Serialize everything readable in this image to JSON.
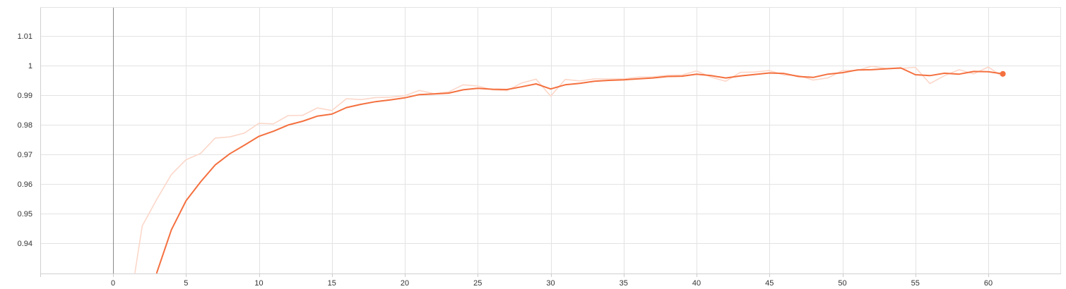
{
  "colors": {
    "smoothed": "#f4703f",
    "raw": "#fcd7c9",
    "grid": "#e3e3e3",
    "zero_line": "#8a8a8a",
    "tick_text": "#333333"
  },
  "chart_data": {
    "type": "line",
    "title": "",
    "xlabel": "",
    "ylabel": "",
    "xlim": [
      -5,
      66
    ],
    "ylim": [
      0.93,
      1.02
    ],
    "grid": true,
    "x_ticks": [
      0,
      5,
      10,
      15,
      20,
      25,
      30,
      35,
      40,
      45,
      50,
      55,
      60
    ],
    "y_ticks": [
      0.94,
      0.95,
      0.96,
      0.97,
      0.98,
      0.99,
      1,
      1.01
    ],
    "x_tick_labels": [
      "0",
      "5",
      "10",
      "15",
      "20",
      "25",
      "30",
      "35",
      "40",
      "45",
      "50",
      "55",
      "60"
    ],
    "y_tick_labels": [
      "0.94",
      "0.95",
      "0.96",
      "0.97",
      "0.98",
      "0.99",
      "1",
      "1.01"
    ],
    "series": [
      {
        "role": "raw",
        "color": "#fcd7c9",
        "x": [
          1.5,
          2,
          3,
          4,
          5,
          6,
          7,
          8,
          9,
          10,
          11,
          12,
          13,
          14,
          15,
          16,
          17,
          18,
          19,
          20,
          21,
          22,
          23,
          24,
          25,
          26,
          27,
          28,
          29,
          30,
          31,
          32,
          33,
          34,
          35,
          36,
          37,
          38,
          39,
          40,
          41,
          42,
          43,
          44,
          45,
          46,
          47,
          48,
          49,
          50,
          51,
          52,
          53,
          54,
          55,
          56,
          57,
          58,
          59,
          60,
          61
        ],
        "y": [
          0.93,
          0.9458,
          0.9548,
          0.9632,
          0.9682,
          0.9703,
          0.9755,
          0.9759,
          0.9772,
          0.9805,
          0.9803,
          0.9831,
          0.9832,
          0.9857,
          0.9848,
          0.9888,
          0.9885,
          0.9892,
          0.9893,
          0.9898,
          0.9916,
          0.9905,
          0.9911,
          0.9935,
          0.9931,
          0.9918,
          0.9915,
          0.9941,
          0.9954,
          0.9897,
          0.9953,
          0.9948,
          0.9955,
          0.9955,
          0.9955,
          0.9961,
          0.9962,
          0.9967,
          0.9968,
          0.9982,
          0.9961,
          0.9947,
          0.9977,
          0.9978,
          0.9983,
          0.9968,
          0.9966,
          0.9951,
          0.9958,
          0.9983,
          0.9983,
          0.9998,
          0.999,
          0.999,
          0.9994,
          0.9939,
          0.9966,
          0.9986,
          0.9972,
          0.9995,
          0.9962
        ]
      },
      {
        "role": "smoothed",
        "color": "#f4703f",
        "x": [
          3,
          4,
          5,
          6,
          7,
          8,
          9,
          10,
          11,
          12,
          13,
          14,
          15,
          16,
          17,
          18,
          19,
          20,
          21,
          22,
          23,
          24,
          25,
          26,
          27,
          28,
          29,
          30,
          31,
          32,
          33,
          34,
          35,
          36,
          37,
          38,
          39,
          40,
          41,
          42,
          43,
          44,
          45,
          46,
          47,
          48,
          49,
          50,
          51,
          52,
          53,
          54,
          55,
          56,
          57,
          58,
          59,
          60,
          61
        ],
        "y": [
          0.93,
          0.9445,
          0.9543,
          0.9607,
          0.9664,
          0.9702,
          0.9731,
          0.9761,
          0.9778,
          0.9799,
          0.9812,
          0.9829,
          0.9836,
          0.9858,
          0.9869,
          0.9878,
          0.9884,
          0.9891,
          0.9902,
          0.9904,
          0.9907,
          0.9918,
          0.9923,
          0.992,
          0.9919,
          0.9928,
          0.9938,
          0.9921,
          0.9935,
          0.994,
          0.9947,
          0.995,
          0.9952,
          0.9955,
          0.9958,
          0.9963,
          0.9964,
          0.9971,
          0.9966,
          0.9958,
          0.9965,
          0.997,
          0.9975,
          0.9973,
          0.9963,
          0.996,
          0.9971,
          0.9976,
          0.9985,
          0.9986,
          0.9989,
          0.9992,
          0.9969,
          0.9966,
          0.9974,
          0.9971,
          0.998,
          0.9979,
          0.9972
        ]
      }
    ]
  }
}
